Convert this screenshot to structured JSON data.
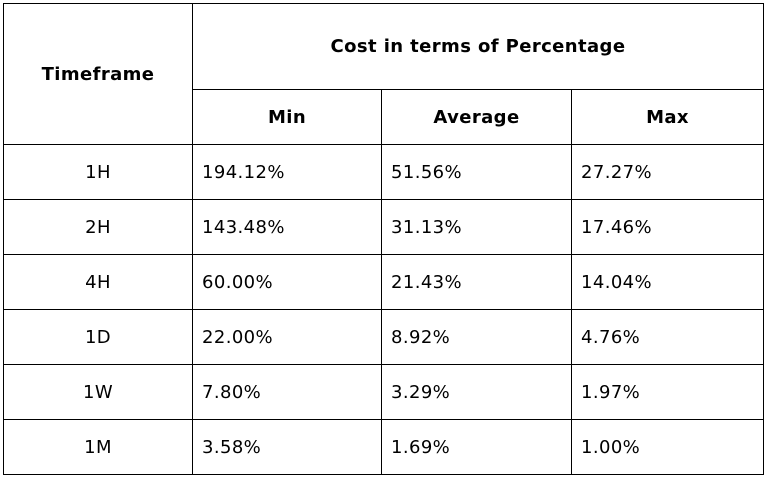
{
  "table": {
    "header": {
      "timeframe": "Timeframe",
      "group": "Cost in terms of Percentage",
      "min": "Min",
      "average": "Average",
      "max": "Max"
    },
    "rows": [
      {
        "timeframe": "1H",
        "min": "194.12%",
        "average": "51.56%",
        "max": "27.27%"
      },
      {
        "timeframe": "2H",
        "min": "143.48%",
        "average": "31.13%",
        "max": "17.46%"
      },
      {
        "timeframe": "4H",
        "min": "60.00%",
        "average": "21.43%",
        "max": "14.04%"
      },
      {
        "timeframe": "1D",
        "min": "22.00%",
        "average": "8.92%",
        "max": "4.76%"
      },
      {
        "timeframe": "1W",
        "min": "7.80%",
        "average": "3.29%",
        "max": "1.97%"
      },
      {
        "timeframe": "1M",
        "min": "3.58%",
        "average": "1.69%",
        "max": "1.00%"
      }
    ]
  }
}
